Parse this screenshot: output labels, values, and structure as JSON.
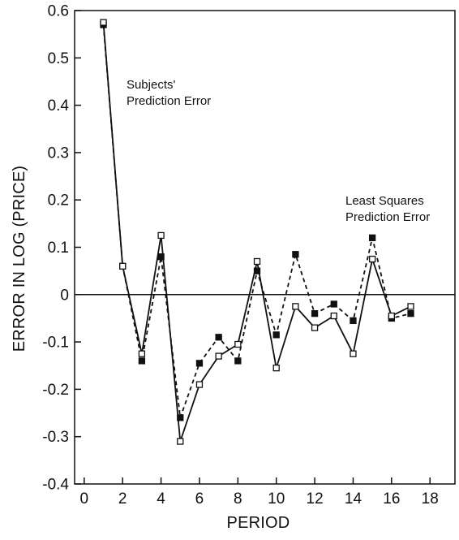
{
  "chart_data": {
    "type": "line",
    "title": "",
    "xlabel": "PERIOD",
    "ylabel": "ERROR IN LOG (PRICE)",
    "xlim": [
      -0.5,
      19.3
    ],
    "ylim": [
      -0.4,
      0.6
    ],
    "x_ticks": [
      0,
      2,
      4,
      6,
      8,
      10,
      12,
      14,
      16,
      18
    ],
    "x_tick_labels": [
      "0",
      "2",
      "4",
      "6",
      "8",
      "10",
      "12",
      "14",
      "16",
      "18"
    ],
    "y_ticks": [
      0.6,
      0.5,
      0.4,
      0.3,
      0.2,
      0.1,
      0,
      -0.1,
      -0.2,
      -0.3,
      -0.4
    ],
    "y_tick_labels": [
      "0.6",
      "0.5",
      "0.4",
      "0.3",
      "0.2",
      "0.1",
      "0",
      "-0.1",
      "-0.2",
      "-0.3",
      "-0.4"
    ],
    "grid": false,
    "reference_line_y": 0,
    "x": [
      1,
      2,
      3,
      4,
      5,
      6,
      7,
      8,
      9,
      10,
      11,
      12,
      13,
      14,
      15,
      16,
      17
    ],
    "series": [
      {
        "name": "Subjects' Prediction Error",
        "style": "solid",
        "marker": "hollow-square",
        "color": "#111111",
        "values": [
          0.575,
          0.06,
          -0.125,
          0.125,
          -0.31,
          -0.19,
          -0.13,
          -0.105,
          0.07,
          -0.155,
          -0.025,
          -0.07,
          -0.045,
          -0.125,
          0.075,
          -0.045,
          -0.025
        ]
      },
      {
        "name": "Least Squares Prediction Error",
        "style": "dashed",
        "marker": "filled-square",
        "color": "#111111",
        "values": [
          0.57,
          0.06,
          -0.14,
          0.08,
          -0.26,
          -0.145,
          -0.09,
          -0.14,
          0.05,
          -0.085,
          0.085,
          -0.04,
          -0.02,
          -0.055,
          0.12,
          -0.05,
          -0.04
        ]
      }
    ],
    "annotations": [
      {
        "lines": [
          "Subjects'",
          "Prediction Error"
        ],
        "x": 2.2,
        "y": 0.435
      },
      {
        "lines": [
          "Least Squares",
          "Prediction Error"
        ],
        "x": 13.6,
        "y": 0.19
      }
    ],
    "colors": {
      "axis": "#111111",
      "background": "#ffffff"
    }
  }
}
